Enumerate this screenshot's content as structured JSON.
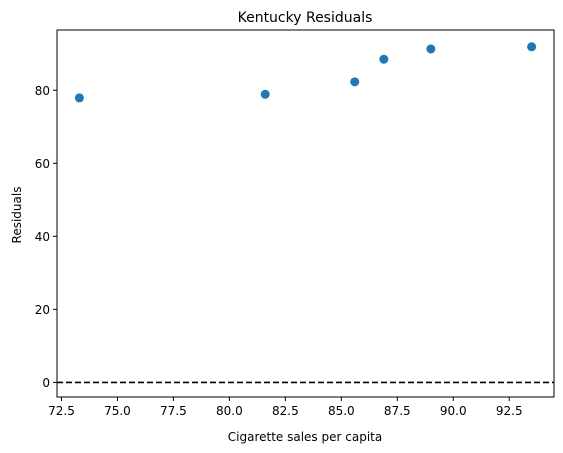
{
  "chart_data": {
    "type": "scatter",
    "title": "Kentucky Residuals",
    "xlabel": "Cigarette sales per capita",
    "ylabel": "Residuals",
    "xlim": [
      72.3,
      94.5
    ],
    "ylim": [
      -4,
      96.5
    ],
    "xticks": [
      72.5,
      75.0,
      77.5,
      80.0,
      82.5,
      85.0,
      87.5,
      90.0,
      92.5
    ],
    "xtick_labels": [
      "72.5",
      "75.0",
      "77.5",
      "80.0",
      "82.5",
      "85.0",
      "87.5",
      "90.0",
      "92.5"
    ],
    "yticks": [
      0,
      20,
      40,
      60,
      80
    ],
    "ytick_labels": [
      "0",
      "20",
      "40",
      "60",
      "80"
    ],
    "points": [
      {
        "x": 73.3,
        "y": 77.9
      },
      {
        "x": 81.6,
        "y": 78.9
      },
      {
        "x": 85.6,
        "y": 82.3
      },
      {
        "x": 86.9,
        "y": 88.5
      },
      {
        "x": 89.0,
        "y": 91.3
      },
      {
        "x": 93.5,
        "y": 91.9
      }
    ],
    "reference_line": {
      "y": 0,
      "style": "dashed",
      "color": "#000000"
    },
    "marker_color": "#1f77b4",
    "grid": false,
    "legend": "none"
  }
}
